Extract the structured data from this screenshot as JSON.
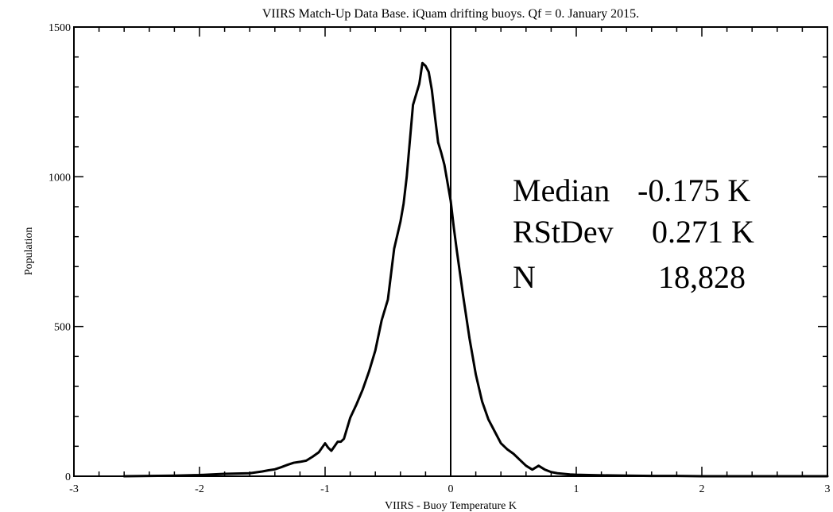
{
  "chart_data": {
    "type": "line",
    "title": "VIIRS Match-Up Data Base. iQuam drifting buoys. Qf = 0. January 2015.",
    "xlabel": "VIIRS - Buoy Temperature K",
    "ylabel": "Population",
    "xlim": [
      -3,
      3
    ],
    "ylim": [
      0,
      1500
    ],
    "xticks": [
      -3,
      -2,
      -1,
      0,
      1,
      2,
      3
    ],
    "yticks": [
      0,
      500,
      1000,
      1500
    ],
    "xtick_labels": [
      "-3",
      "-2",
      "-1",
      "0",
      "1",
      "2",
      "3"
    ],
    "ytick_labels": [
      "0",
      "500",
      "1000",
      "1500"
    ],
    "vertical_line_x": 0,
    "grid": false,
    "series": [
      {
        "x": [
          -2.6,
          -2.4,
          -2.2,
          -2.1,
          -2.0,
          -1.9,
          -1.8,
          -1.7,
          -1.6,
          -1.55,
          -1.5,
          -1.45,
          -1.4,
          -1.35,
          -1.3,
          -1.25,
          -1.2,
          -1.15,
          -1.1,
          -1.05,
          -1.0,
          -0.975,
          -0.95,
          -0.925,
          -0.9,
          -0.875,
          -0.85,
          -0.8,
          -0.75,
          -0.7,
          -0.65,
          -0.6,
          -0.55,
          -0.5,
          -0.45,
          -0.4,
          -0.375,
          -0.35,
          -0.3,
          -0.25,
          -0.225,
          -0.2,
          -0.175,
          -0.15,
          -0.125,
          -0.1,
          -0.075,
          -0.05,
          -0.025,
          0.0,
          0.025,
          0.05,
          0.1,
          0.15,
          0.2,
          0.25,
          0.3,
          0.35,
          0.4,
          0.45,
          0.5,
          0.55,
          0.6,
          0.65,
          0.7,
          0.75,
          0.8,
          0.85,
          0.9,
          0.95,
          1.0,
          1.1,
          1.2,
          1.4,
          1.6,
          1.8,
          2.0,
          2.5,
          3.0
        ],
        "y": [
          0,
          1,
          2,
          3,
          4,
          6,
          8,
          9,
          10,
          13,
          16,
          20,
          23,
          30,
          38,
          45,
          48,
          52,
          65,
          80,
          110,
          95,
          85,
          100,
          115,
          115,
          125,
          195,
          240,
          290,
          350,
          420,
          520,
          590,
          760,
          850,
          910,
          1000,
          1240,
          1310,
          1380,
          1370,
          1350,
          1290,
          1200,
          1115,
          1080,
          1040,
          980,
          920,
          830,
          750,
          600,
          460,
          340,
          250,
          190,
          150,
          110,
          90,
          75,
          55,
          35,
          22,
          35,
          22,
          14,
          10,
          8,
          6,
          5,
          4,
          3,
          2,
          1,
          1,
          0,
          0,
          0
        ]
      }
    ],
    "annotations": [
      {
        "label": "Median",
        "value": "-0.175 K"
      },
      {
        "label": "RStDev",
        "value": "0.271 K"
      },
      {
        "label": "N",
        "value": "18,828"
      }
    ]
  }
}
